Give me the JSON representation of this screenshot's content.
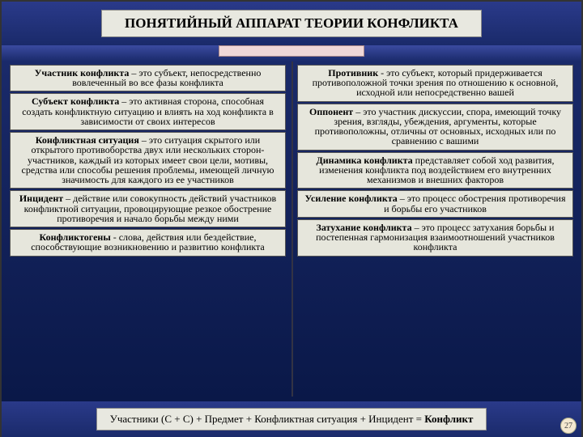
{
  "colors": {
    "bg_top": "#2a3a8a",
    "bg_bottom": "#0a1848",
    "box_bg": "#e6e6dc",
    "box_border": "#555555",
    "connector_bg": "#f0d8d8"
  },
  "typography": {
    "family": "Times New Roman",
    "title_size_pt": 17,
    "body_size_pt": 12,
    "formula_size_pt": 13
  },
  "title": "ПОНЯТИЙНЫЙ АППАРАТ ТЕОРИИ КОНФЛИКТА",
  "left": [
    {
      "term": "Участник конфликта",
      "text": " – это субъект, непосредственно вовлеченный во все фазы конфликта"
    },
    {
      "term": "Субъект конфликта",
      "text": " – это активная сторона, способная создать конфликтную ситуацию и влиять на ход конфликта в зависимости от своих интересов"
    },
    {
      "term": "Конфликтная ситуация",
      "text": " – это ситуация скрытого или открытого противоборства двух или нескольких сторон-участников, каждый из которых имеет свои цели, мотивы, средства или способы решения проблемы, имеющей личную значимость для каждого из ее участников"
    },
    {
      "term": "Инцидент",
      "text": " – действие или совокупность действий участников конфликтной ситуации, провоцирующие резкое обострение противоречия и начало борьбы между ними"
    },
    {
      "term": "Конфликтогены",
      "text": " - слова, действия или бездействие, способствующие возникновению и развитию конфликта"
    }
  ],
  "right": [
    {
      "term": "Противник",
      "text": " - это субъект, который придерживается противоположной точки зрения по отношению к основной, исходной или непосредственно вашей"
    },
    {
      "term": "Оппонент",
      "text": " – это участник дискуссии, спора, имеющий точку зрения, взгляды, убеждения, аргументы, которые противоположны, отличны от основных, исходных или по сравнению с вашими"
    },
    {
      "term": "Динамика конфликта",
      "text": " представляет собой ход развития, изменения конфликта под воздействием его внутренних механизмов и внешних факторов"
    },
    {
      "term": "Усиление конфликта",
      "text": " – это процесс обострения противоречия и борьбы его участников"
    },
    {
      "term": "Затухание конфликта",
      "text": " – это процесс затухания борьбы и постепенная гармонизация взаимоотношений участников конфликта"
    }
  ],
  "formula_parts": {
    "prefix": "Участники (С + С) + Предмет + Конфликтная ситуация + Инцидент  = ",
    "result": "Конфликт"
  },
  "page_number": "27"
}
